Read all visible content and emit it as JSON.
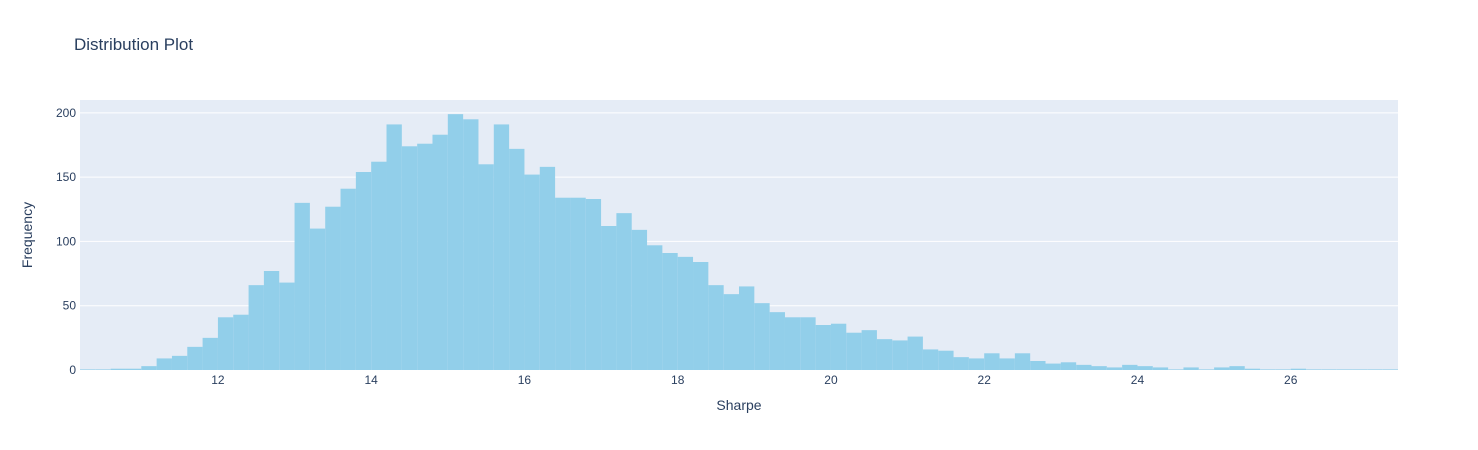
{
  "chart_data": {
    "type": "bar",
    "title": "Distribution Plot",
    "xlabel": "Sharpe",
    "ylabel": "Frequency",
    "xlim": [
      10.2,
      27.4
    ],
    "ylim": [
      0,
      210
    ],
    "x_ticks": [
      12,
      14,
      16,
      18,
      20,
      22,
      24,
      26
    ],
    "y_ticks": [
      0,
      50,
      100,
      150,
      200
    ],
    "grid": true,
    "legend": "none",
    "bin_start": 10.2,
    "bin_width": 0.2,
    "values": [
      0,
      0,
      1,
      1,
      3,
      9,
      11,
      18,
      25,
      41,
      43,
      66,
      77,
      68,
      130,
      110,
      127,
      141,
      154,
      162,
      191,
      174,
      176,
      183,
      199,
      195,
      160,
      191,
      172,
      152,
      158,
      134,
      134,
      133,
      112,
      122,
      109,
      97,
      91,
      88,
      84,
      66,
      59,
      65,
      52,
      45,
      41,
      41,
      35,
      36,
      29,
      31,
      24,
      23,
      26,
      16,
      15,
      10,
      9,
      13,
      9,
      13,
      7,
      5,
      6,
      4,
      3,
      2,
      4,
      3,
      2,
      0,
      2,
      0,
      2,
      3,
      1,
      0,
      0,
      1,
      0,
      0,
      0,
      0,
      0,
      0,
      1
    ]
  },
  "colors": {
    "bar": "#92cfea",
    "plot_background": "#e5ecf6",
    "grid": "#ffffff",
    "text": "#2a3f5f"
  }
}
